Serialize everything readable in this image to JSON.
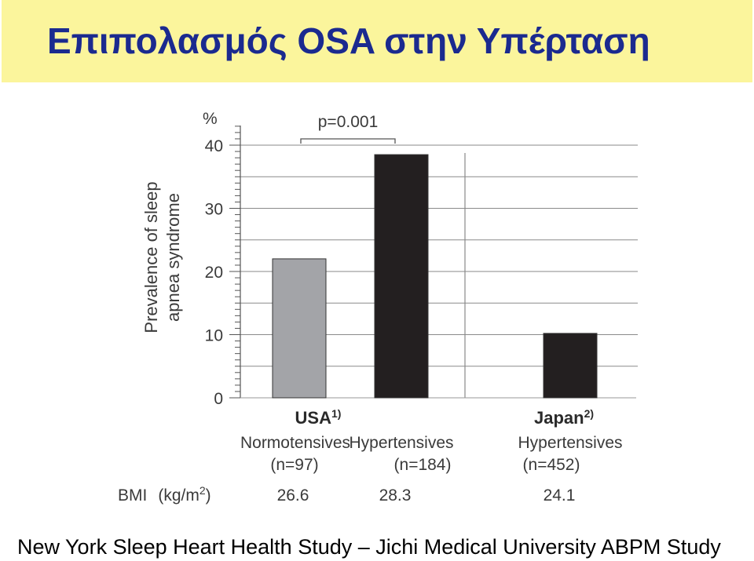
{
  "slide": {
    "title": "Επιπολασμός OSA στην Υπέρταση",
    "footer": "New York Sleep Heart Health Study – Jichi Medical University ABPM Study"
  },
  "chart_data": {
    "type": "bar",
    "ylabel_lines": [
      "Prevalence of sleep",
      "apnea syndrome"
    ],
    "yunit": "%",
    "ylim": [
      0,
      40
    ],
    "yticks": [
      0,
      10,
      20,
      30,
      40
    ],
    "grid": true,
    "groups": [
      {
        "label": "USA",
        "superscript": "1)"
      },
      {
        "label": "Japan",
        "superscript": "2)"
      }
    ],
    "categories": [
      {
        "label": "Normotensives",
        "n": "(n=97)",
        "bmi": "26.6",
        "value": 22,
        "group": 0,
        "color": "#a3a4a8"
      },
      {
        "label": "Hypertensives",
        "n": "(n=184)",
        "bmi": "28.3",
        "value": 38.5,
        "group": 0,
        "color": "#231f20"
      },
      {
        "label": "Hypertensives",
        "n": "(n=452)",
        "bmi": "24.1",
        "value": 10.2,
        "group": 1,
        "color": "#231f20"
      }
    ],
    "bmi_label": "BMI",
    "bmi_unit": "(kg/m",
    "bmi_unit_sup": "2",
    "bmi_unit_close": ")",
    "annotation": "p=0.001"
  }
}
